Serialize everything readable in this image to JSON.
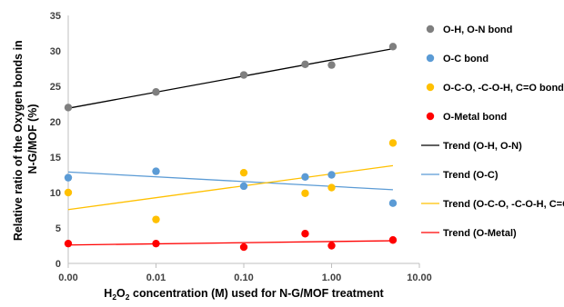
{
  "chart_data": {
    "type": "scatter",
    "x_scale": "log",
    "xlabel_parts": [
      "H",
      "2",
      "O",
      "2",
      " concentration (M) used for N-G/MOF treatment"
    ],
    "ylabel_lines": [
      "Relative ratio of the Oxygen bonds in",
      "N-G/MOF  (%)"
    ],
    "xlim": [
      0.001,
      10
    ],
    "ylim": [
      0,
      35
    ],
    "x_ticks": [
      0.001,
      0.01,
      0.1,
      1,
      10
    ],
    "x_tick_labels": [
      "0.00",
      "0.01",
      "0.10",
      "1.00",
      "10.00"
    ],
    "y_ticks": [
      0,
      5,
      10,
      15,
      20,
      25,
      30,
      35
    ],
    "x": [
      0.001,
      0.01,
      0.1,
      0.5,
      1,
      5
    ],
    "grid": false,
    "legend_position": "right",
    "series": [
      {
        "name": "O-H, O-N bond",
        "color": "#7f7f7f",
        "values": [
          22.0,
          24.2,
          26.6,
          28.1,
          28.0,
          30.6
        ],
        "trend": {
          "name": "Trend (O-H, O-N)",
          "color": "#000000",
          "start": 21.9,
          "end": 30.3
        }
      },
      {
        "name": "O-C bond",
        "color": "#5b9bd5",
        "values": [
          12.1,
          13.0,
          10.9,
          12.2,
          12.5,
          8.5
        ],
        "trend": {
          "name": "Trend (O-C)",
          "color": "#5b9bd5",
          "start": 12.9,
          "end": 10.4
        }
      },
      {
        "name": "O-C-O, -C-O-H, C=O bond",
        "color": "#ffc000",
        "values": [
          10.0,
          6.2,
          12.8,
          9.9,
          10.7,
          17.0
        ],
        "trend": {
          "name": "Trend (O-C-O, -C-O-H, C=O)",
          "color": "#ffc000",
          "start": 7.6,
          "end": 13.8
        }
      },
      {
        "name": "O-Metal bond",
        "color": "#ff0000",
        "values": [
          2.8,
          2.8,
          2.3,
          4.2,
          2.5,
          3.3
        ],
        "trend": {
          "name": "Trend (O-Metal)",
          "color": "#ff0000",
          "start": 2.6,
          "end": 3.2
        }
      }
    ]
  }
}
